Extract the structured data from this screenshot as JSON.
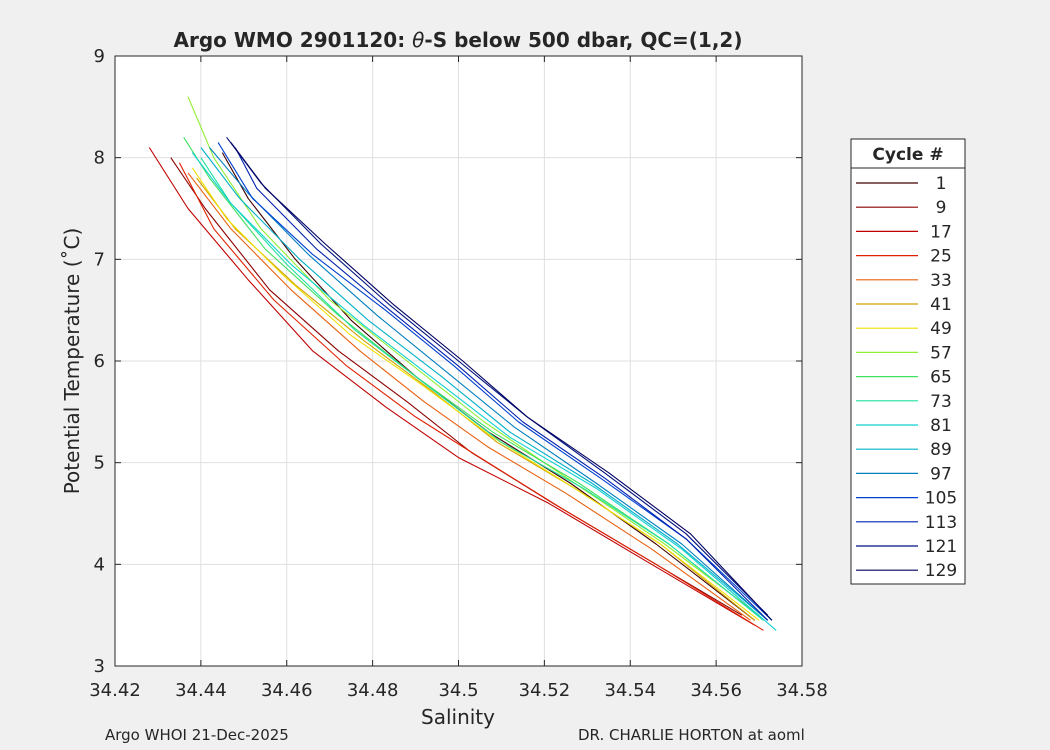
{
  "chart_data": {
    "type": "line",
    "title": "Argo WMO 2901120: θ-S below 500 dbar,  QC=(1,2)",
    "title_prefix": "Argo WMO 2901120: ",
    "title_symbol": "θ",
    "title_suffix": "-S below 500 dbar,  QC=(1,2)",
    "xlabel": "Salinity",
    "ylabel": "Potential Temperature (˚C)",
    "xlim": [
      34.42,
      34.58
    ],
    "ylim": [
      3,
      9
    ],
    "xticks": [
      "34.42",
      "34.44",
      "34.46",
      "34.48",
      "34.5",
      "34.52",
      "34.54",
      "34.56",
      "34.58"
    ],
    "yticks": [
      "3",
      "4",
      "5",
      "6",
      "7",
      "8",
      "9"
    ],
    "grid": true,
    "legend": {
      "title": "Cycle #",
      "position": "right",
      "entries": [
        "1",
        "9",
        "17",
        "25",
        "33",
        "41",
        "49",
        "57",
        "65",
        "73",
        "81",
        "89",
        "97",
        "105",
        "113",
        "121",
        "129"
      ]
    },
    "footer_left": "Argo WHOI 21-Dec-2025",
    "footer_right": "DR. CHARLIE HORTON at aoml",
    "series": [
      {
        "name": "1",
        "color": "#400000",
        "x": [
          34.445,
          34.451,
          34.462,
          34.475,
          34.49,
          34.507,
          34.526,
          34.546,
          34.569
        ],
        "y": [
          8.05,
          7.6,
          7.0,
          6.4,
          5.85,
          5.3,
          4.8,
          4.2,
          3.45
        ]
      },
      {
        "name": "9",
        "color": "#8b0000",
        "x": [
          34.433,
          34.441,
          34.456,
          34.472,
          34.488,
          34.503,
          34.522,
          34.542,
          34.566
        ],
        "y": [
          8.0,
          7.5,
          6.7,
          6.1,
          5.6,
          5.1,
          4.6,
          4.1,
          3.5
        ]
      },
      {
        "name": "17",
        "color": "#c00000",
        "x": [
          34.428,
          34.437,
          34.451,
          34.466,
          34.483,
          34.5,
          34.521,
          34.543,
          34.569
        ],
        "y": [
          8.1,
          7.5,
          6.8,
          6.1,
          5.55,
          5.05,
          4.6,
          4.05,
          3.4
        ]
      },
      {
        "name": "25",
        "color": "#e02000",
        "x": [
          34.435,
          34.443,
          34.457,
          34.474,
          34.49,
          34.505,
          34.524,
          34.546,
          34.571
        ],
        "y": [
          7.95,
          7.3,
          6.6,
          5.95,
          5.45,
          5.05,
          4.55,
          4.0,
          3.35
        ]
      },
      {
        "name": "33",
        "color": "#e86010",
        "x": [
          34.437,
          34.447,
          34.461,
          34.477,
          34.492,
          34.507,
          34.525,
          34.545,
          34.568
        ],
        "y": [
          7.85,
          7.3,
          6.7,
          6.1,
          5.6,
          5.15,
          4.7,
          4.15,
          3.45
        ]
      },
      {
        "name": "41",
        "color": "#d2a000",
        "x": [
          34.439,
          34.448,
          34.462,
          34.478,
          34.494,
          34.509,
          34.527,
          34.547,
          34.569
        ],
        "y": [
          7.8,
          7.3,
          6.75,
          6.2,
          5.7,
          5.2,
          4.75,
          4.2,
          3.45
        ]
      },
      {
        "name": "49",
        "color": "#f0e000",
        "x": [
          34.438,
          34.446,
          34.459,
          34.475,
          34.492,
          34.508,
          34.527,
          34.547,
          34.57
        ],
        "y": [
          7.9,
          7.4,
          6.85,
          6.25,
          5.75,
          5.25,
          4.75,
          4.2,
          3.45
        ]
      },
      {
        "name": "57",
        "color": "#90ee30",
        "x": [
          34.437,
          34.443,
          34.454,
          34.47,
          34.488,
          34.506,
          34.527,
          34.548,
          34.57
        ],
        "y": [
          8.6,
          8.0,
          7.3,
          6.6,
          6.0,
          5.4,
          4.8,
          4.2,
          3.5
        ]
      },
      {
        "name": "65",
        "color": "#40e060",
        "x": [
          34.436,
          34.442,
          34.455,
          34.472,
          34.49,
          34.508,
          34.528,
          34.549,
          34.571
        ],
        "y": [
          8.2,
          7.8,
          7.1,
          6.45,
          5.85,
          5.3,
          4.8,
          4.2,
          3.45
        ]
      },
      {
        "name": "73",
        "color": "#20e0a0",
        "x": [
          34.44,
          34.447,
          34.46,
          34.476,
          34.493,
          34.51,
          34.529,
          34.549,
          34.571
        ],
        "y": [
          8.0,
          7.55,
          6.95,
          6.3,
          5.75,
          5.2,
          4.75,
          4.2,
          3.45
        ]
      },
      {
        "name": "81",
        "color": "#10d0d0",
        "x": [
          34.438,
          34.447,
          34.461,
          34.478,
          34.495,
          34.512,
          34.532,
          34.552,
          34.574
        ],
        "y": [
          8.05,
          7.55,
          6.95,
          6.35,
          5.8,
          5.25,
          4.75,
          4.15,
          3.35
        ]
      },
      {
        "name": "89",
        "color": "#00b0c8",
        "x": [
          34.44,
          34.449,
          34.463,
          34.479,
          34.496,
          34.512,
          34.531,
          34.551,
          34.572
        ],
        "y": [
          8.1,
          7.6,
          7.0,
          6.4,
          5.85,
          5.3,
          4.8,
          4.2,
          3.45
        ]
      },
      {
        "name": "97",
        "color": "#0080c0",
        "x": [
          34.442,
          34.451,
          34.465,
          34.481,
          34.497,
          34.513,
          34.532,
          34.552,
          34.572
        ],
        "y": [
          8.1,
          7.65,
          7.05,
          6.45,
          5.9,
          5.35,
          4.8,
          4.2,
          3.45
        ]
      },
      {
        "name": "105",
        "color": "#0040d0",
        "x": [
          34.444,
          34.452,
          34.466,
          34.483,
          34.499,
          34.514,
          34.533,
          34.553,
          34.573
        ],
        "y": [
          8.15,
          7.6,
          7.05,
          6.5,
          5.95,
          5.4,
          4.85,
          4.25,
          3.45
        ]
      },
      {
        "name": "113",
        "color": "#0020b0",
        "x": [
          34.448,
          34.453,
          34.467,
          34.484,
          34.5,
          34.515,
          34.534,
          34.553,
          34.572
        ],
        "y": [
          8.1,
          7.7,
          7.1,
          6.5,
          5.95,
          5.4,
          4.85,
          4.25,
          3.45
        ]
      },
      {
        "name": "121",
        "color": "#001080",
        "x": [
          34.446,
          34.454,
          34.468,
          34.484,
          34.5,
          34.516,
          34.534,
          34.553,
          34.572
        ],
        "y": [
          8.2,
          7.75,
          7.15,
          6.55,
          6.0,
          5.45,
          4.9,
          4.3,
          3.5
        ]
      },
      {
        "name": "129",
        "color": "#000060",
        "x": [
          34.447,
          34.455,
          34.469,
          34.485,
          34.501,
          34.516,
          34.535,
          34.554,
          34.573
        ],
        "y": [
          8.15,
          7.7,
          7.15,
          6.55,
          6.0,
          5.45,
          4.9,
          4.3,
          3.45
        ]
      }
    ]
  }
}
